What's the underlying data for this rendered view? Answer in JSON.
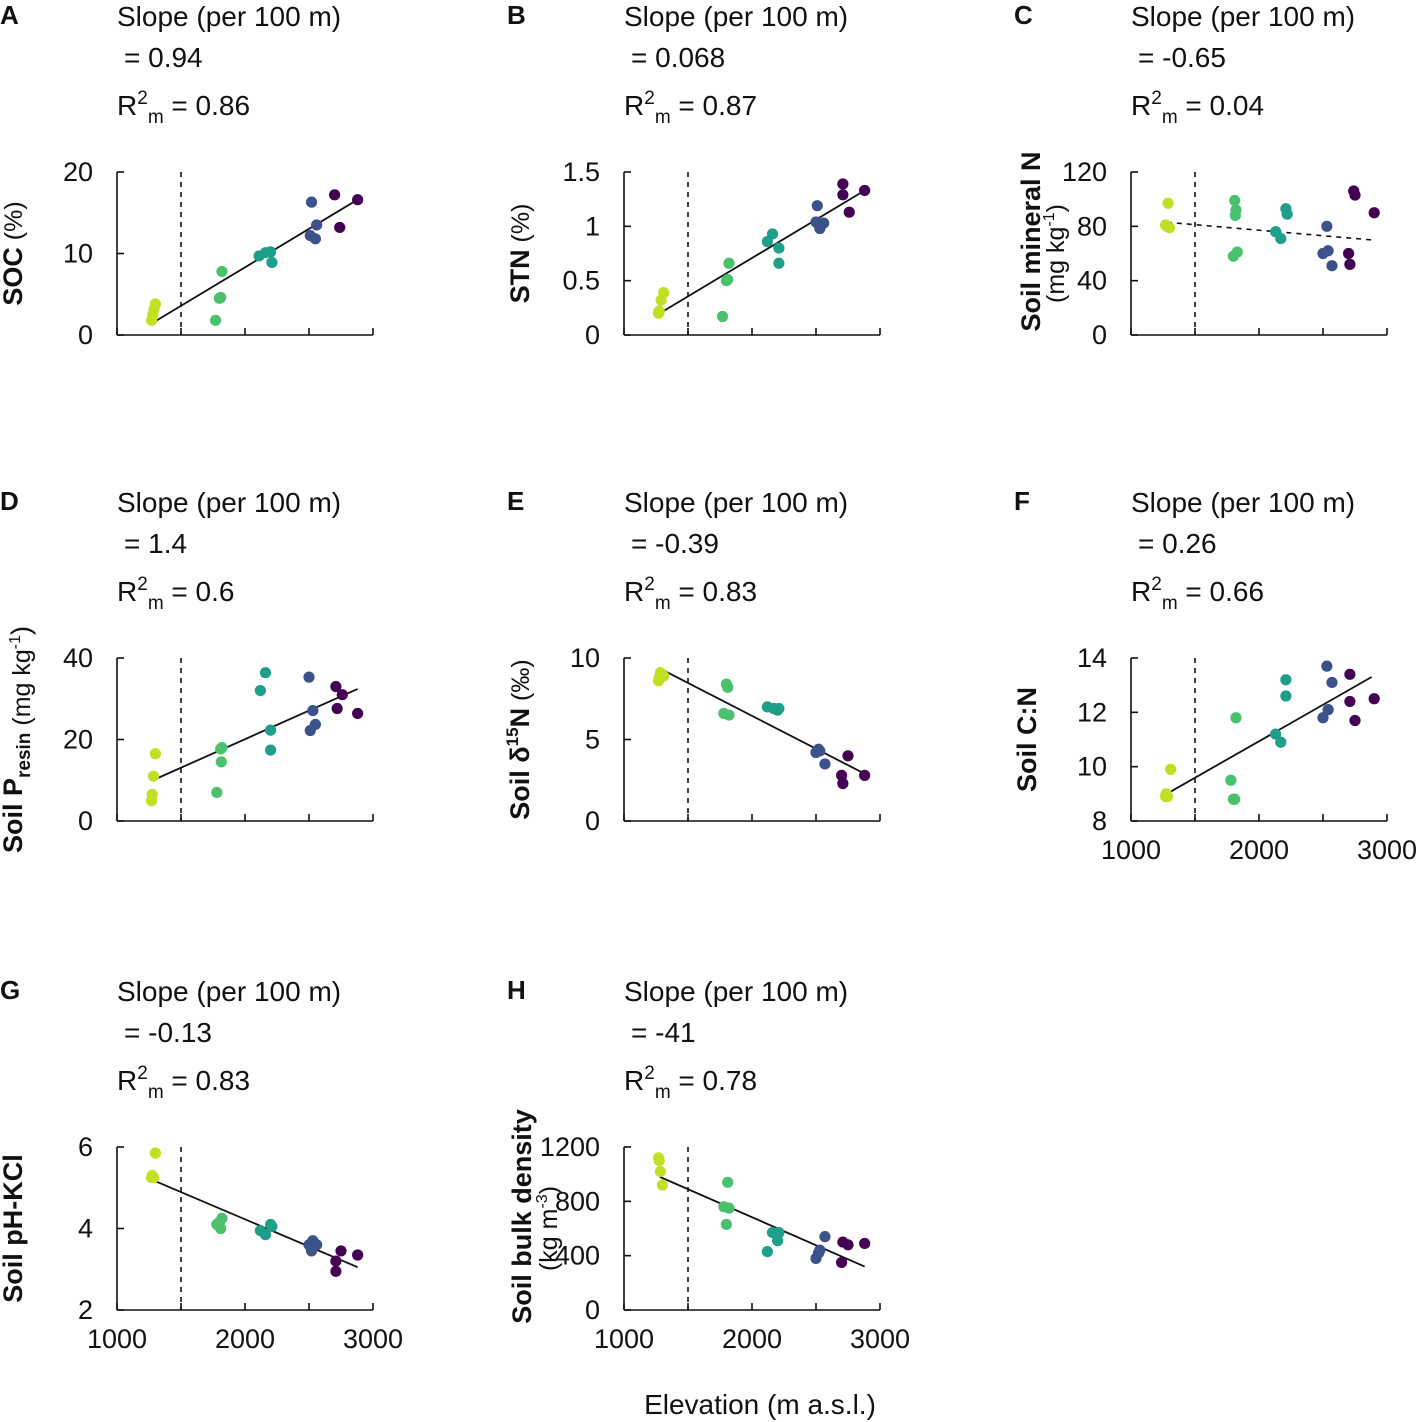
{
  "figure": {
    "x_axis_title": "Elevation (m a.s.l.)",
    "slope_title": "Slope (per 100 m)",
    "reference_elevation": 1500,
    "site_colors": [
      "#c2df23",
      "#4ac16d",
      "#1f9e89",
      "#3b528b",
      "#440154"
    ]
  },
  "chart_data": [
    {
      "panel": "A",
      "type": "scatter",
      "ylabel_main": "SOC",
      "ylabel_unit": "(%)",
      "slope_value": "= 0.94",
      "r2_label": "R",
      "r2_sup": "2",
      "r2_sub": "m",
      "r2_value": "= 0.86",
      "xlim": [
        1000,
        3000
      ],
      "ylim": [
        0,
        20
      ],
      "yticks": [
        0,
        10,
        20
      ],
      "xticks": [],
      "xtick_labels": [],
      "fit": {
        "x": [
          1280,
          2900
        ],
        "y": [
          1.5,
          16.8
        ],
        "dashed": false
      },
      "points": [
        {
          "x": 1270,
          "y": 1.8,
          "site": 0
        },
        {
          "x": 1280,
          "y": 2.5,
          "site": 0
        },
        {
          "x": 1290,
          "y": 3.2,
          "site": 0
        },
        {
          "x": 1300,
          "y": 3.8,
          "site": 0
        },
        {
          "x": 1770,
          "y": 1.8,
          "site": 1
        },
        {
          "x": 1800,
          "y": 4.5,
          "site": 1
        },
        {
          "x": 1810,
          "y": 4.6,
          "site": 1
        },
        {
          "x": 1820,
          "y": 7.8,
          "site": 1
        },
        {
          "x": 2110,
          "y": 9.7,
          "site": 2
        },
        {
          "x": 2160,
          "y": 10.1,
          "site": 2
        },
        {
          "x": 2200,
          "y": 10.2,
          "site": 2
        },
        {
          "x": 2210,
          "y": 8.9,
          "site": 2
        },
        {
          "x": 2510,
          "y": 12.2,
          "site": 3
        },
        {
          "x": 2520,
          "y": 16.3,
          "site": 3
        },
        {
          "x": 2550,
          "y": 11.8,
          "site": 3
        },
        {
          "x": 2560,
          "y": 13.5,
          "site": 3
        },
        {
          "x": 2700,
          "y": 17.2,
          "site": 4
        },
        {
          "x": 2740,
          "y": 13.2,
          "site": 4
        },
        {
          "x": 2880,
          "y": 16.6,
          "site": 4
        }
      ]
    },
    {
      "panel": "B",
      "type": "scatter",
      "ylabel_main": "STN",
      "ylabel_unit": "(%)",
      "slope_value": "= 0.068",
      "r2_label": "R",
      "r2_sup": "2",
      "r2_sub": "m",
      "r2_value": "= 0.87",
      "xlim": [
        1000,
        3000
      ],
      "ylim": [
        0,
        1.5
      ],
      "yticks": [
        0,
        0.5,
        1,
        1.5
      ],
      "xticks": [],
      "xtick_labels": [],
      "fit": {
        "x": [
          1280,
          2880
        ],
        "y": [
          0.2,
          1.33
        ],
        "dashed": false
      },
      "points": [
        {
          "x": 1270,
          "y": 0.2,
          "site": 0
        },
        {
          "x": 1275,
          "y": 0.22,
          "site": 0
        },
        {
          "x": 1290,
          "y": 0.32,
          "site": 0
        },
        {
          "x": 1310,
          "y": 0.39,
          "site": 0
        },
        {
          "x": 1770,
          "y": 0.17,
          "site": 1
        },
        {
          "x": 1800,
          "y": 0.5,
          "site": 1
        },
        {
          "x": 1810,
          "y": 0.51,
          "site": 1
        },
        {
          "x": 1820,
          "y": 0.66,
          "site": 1
        },
        {
          "x": 2120,
          "y": 0.86,
          "site": 2
        },
        {
          "x": 2160,
          "y": 0.93,
          "site": 2
        },
        {
          "x": 2210,
          "y": 0.8,
          "site": 2
        },
        {
          "x": 2210,
          "y": 0.66,
          "site": 2
        },
        {
          "x": 2500,
          "y": 1.04,
          "site": 3
        },
        {
          "x": 2510,
          "y": 1.19,
          "site": 3
        },
        {
          "x": 2530,
          "y": 0.98,
          "site": 3
        },
        {
          "x": 2560,
          "y": 1.03,
          "site": 3
        },
        {
          "x": 2710,
          "y": 1.39,
          "site": 4
        },
        {
          "x": 2710,
          "y": 1.29,
          "site": 4
        },
        {
          "x": 2760,
          "y": 1.13,
          "site": 4
        },
        {
          "x": 2880,
          "y": 1.33,
          "site": 4
        }
      ]
    },
    {
      "panel": "C",
      "type": "scatter",
      "ylabel_main": "Soil mineral N",
      "ylabel_unit": "(mg kg",
      "ylabel_unit_sup": "-1",
      "ylabel_unit_end": ")",
      "slope_value": "= -0.65",
      "r2_label": "R",
      "r2_sup": "2",
      "r2_sub": "m",
      "r2_value": "= 0.04",
      "xlim": [
        1000,
        3000
      ],
      "ylim": [
        0,
        120
      ],
      "yticks": [
        0,
        40,
        80,
        120
      ],
      "xticks": [],
      "xtick_labels": [],
      "fit": {
        "x": [
          1280,
          2880
        ],
        "y": [
          83,
          70
        ],
        "dashed": true
      },
      "points": [
        {
          "x": 1270,
          "y": 81,
          "site": 0
        },
        {
          "x": 1280,
          "y": 80,
          "site": 0
        },
        {
          "x": 1290,
          "y": 97,
          "site": 0
        },
        {
          "x": 1300,
          "y": 79,
          "site": 0
        },
        {
          "x": 1800,
          "y": 58,
          "site": 1
        },
        {
          "x": 1810,
          "y": 99,
          "site": 1
        },
        {
          "x": 1815,
          "y": 88,
          "site": 1
        },
        {
          "x": 1820,
          "y": 92,
          "site": 1
        },
        {
          "x": 1830,
          "y": 61,
          "site": 1
        },
        {
          "x": 2130,
          "y": 76,
          "site": 2
        },
        {
          "x": 2170,
          "y": 71,
          "site": 2
        },
        {
          "x": 2210,
          "y": 93,
          "site": 2
        },
        {
          "x": 2220,
          "y": 89,
          "site": 2
        },
        {
          "x": 2500,
          "y": 60,
          "site": 3
        },
        {
          "x": 2530,
          "y": 80,
          "site": 3
        },
        {
          "x": 2540,
          "y": 62,
          "site": 3
        },
        {
          "x": 2570,
          "y": 51,
          "site": 3
        },
        {
          "x": 2700,
          "y": 60,
          "site": 4
        },
        {
          "x": 2710,
          "y": 52,
          "site": 4
        },
        {
          "x": 2740,
          "y": 106,
          "site": 4
        },
        {
          "x": 2750,
          "y": 103,
          "site": 4
        },
        {
          "x": 2900,
          "y": 90,
          "site": 4
        }
      ]
    },
    {
      "panel": "D",
      "type": "scatter",
      "ylabel_main": "Soil P",
      "ylabel_sub": "resin",
      "ylabel_unit": "(mg kg",
      "ylabel_unit_sup": "-1",
      "ylabel_unit_end": ")",
      "slope_value": "= 1.4",
      "r2_label": "R",
      "r2_sup": "2",
      "r2_sub": "m",
      "r2_value": "= 0.6",
      "xlim": [
        1000,
        3000
      ],
      "ylim": [
        0,
        40
      ],
      "yticks": [
        0,
        20,
        40
      ],
      "xticks": [],
      "xtick_labels": [],
      "fit": {
        "x": [
          1280,
          2880
        ],
        "y": [
          10,
          32.4
        ],
        "dashed": false
      },
      "points": [
        {
          "x": 1270,
          "y": 5,
          "site": 0
        },
        {
          "x": 1275,
          "y": 6.5,
          "site": 0
        },
        {
          "x": 1285,
          "y": 11,
          "site": 0
        },
        {
          "x": 1300,
          "y": 16.5,
          "site": 0
        },
        {
          "x": 1780,
          "y": 7,
          "site": 1
        },
        {
          "x": 1810,
          "y": 17.7,
          "site": 1
        },
        {
          "x": 1815,
          "y": 14.5,
          "site": 1
        },
        {
          "x": 1820,
          "y": 18,
          "site": 1
        },
        {
          "x": 2120,
          "y": 32,
          "site": 2
        },
        {
          "x": 2160,
          "y": 36.4,
          "site": 2
        },
        {
          "x": 2200,
          "y": 22.3,
          "site": 2
        },
        {
          "x": 2200,
          "y": 17.4,
          "site": 2
        },
        {
          "x": 2500,
          "y": 35.3,
          "site": 3
        },
        {
          "x": 2510,
          "y": 22.2,
          "site": 3
        },
        {
          "x": 2530,
          "y": 27.1,
          "site": 3
        },
        {
          "x": 2550,
          "y": 23.7,
          "site": 3
        },
        {
          "x": 2710,
          "y": 33,
          "site": 4
        },
        {
          "x": 2720,
          "y": 27.6,
          "site": 4
        },
        {
          "x": 2760,
          "y": 31,
          "site": 4
        },
        {
          "x": 2880,
          "y": 26.4,
          "site": 4
        }
      ]
    },
    {
      "panel": "E",
      "type": "scatter",
      "ylabel_main": "Soil δ",
      "ylabel_sup": "15",
      "ylabel_after": "N",
      "ylabel_unit": "(‰)",
      "slope_value": "= -0.39",
      "r2_label": "R",
      "r2_sup": "2",
      "r2_sub": "m",
      "r2_value": "= 0.83",
      "xlim": [
        1000,
        3000
      ],
      "ylim": [
        0,
        10
      ],
      "yticks": [
        0,
        5,
        10
      ],
      "xticks": [],
      "xtick_labels": [],
      "fit": {
        "x": [
          1270,
          2880
        ],
        "y": [
          9.4,
          2.9
        ],
        "dashed": false
      },
      "points": [
        {
          "x": 1270,
          "y": 8.6,
          "site": 0
        },
        {
          "x": 1275,
          "y": 8.8,
          "site": 0
        },
        {
          "x": 1285,
          "y": 9.1,
          "site": 0
        },
        {
          "x": 1310,
          "y": 8.9,
          "site": 0
        },
        {
          "x": 1780,
          "y": 6.6,
          "site": 1
        },
        {
          "x": 1800,
          "y": 8.4,
          "site": 1
        },
        {
          "x": 1810,
          "y": 8.2,
          "site": 1
        },
        {
          "x": 1820,
          "y": 6.5,
          "site": 1
        },
        {
          "x": 2120,
          "y": 7.0,
          "site": 2
        },
        {
          "x": 2170,
          "y": 6.9,
          "site": 2
        },
        {
          "x": 2200,
          "y": 6.8,
          "site": 2
        },
        {
          "x": 2210,
          "y": 6.9,
          "site": 2
        },
        {
          "x": 2500,
          "y": 4.2,
          "site": 3
        },
        {
          "x": 2520,
          "y": 4.4,
          "site": 3
        },
        {
          "x": 2530,
          "y": 4.3,
          "site": 3
        },
        {
          "x": 2570,
          "y": 3.5,
          "site": 3
        },
        {
          "x": 2700,
          "y": 2.8,
          "site": 4
        },
        {
          "x": 2710,
          "y": 2.3,
          "site": 4
        },
        {
          "x": 2750,
          "y": 4.0,
          "site": 4
        },
        {
          "x": 2880,
          "y": 2.8,
          "site": 4
        }
      ]
    },
    {
      "panel": "F",
      "type": "scatter",
      "ylabel_main": "Soil C:N",
      "ylabel_unit": "",
      "slope_value": "= 0.26",
      "r2_label": "R",
      "r2_sup": "2",
      "r2_sub": "m",
      "r2_value": "= 0.66",
      "xlim": [
        1000,
        3000
      ],
      "ylim": [
        8,
        14
      ],
      "yticks": [
        8,
        10,
        12,
        14
      ],
      "xticks": [
        1000,
        2000,
        3000
      ],
      "xtick_labels": [
        "1000",
        "2000",
        "3000"
      ],
      "fit": {
        "x": [
          1280,
          2880
        ],
        "y": [
          9.0,
          13.3
        ],
        "dashed": false
      },
      "points": [
        {
          "x": 1270,
          "y": 8.9,
          "site": 0
        },
        {
          "x": 1275,
          "y": 9.0,
          "site": 0
        },
        {
          "x": 1285,
          "y": 8.9,
          "site": 0
        },
        {
          "x": 1310,
          "y": 9.9,
          "site": 0
        },
        {
          "x": 1780,
          "y": 9.5,
          "site": 1
        },
        {
          "x": 1800,
          "y": 8.8,
          "site": 1
        },
        {
          "x": 1810,
          "y": 8.8,
          "site": 1
        },
        {
          "x": 1820,
          "y": 11.8,
          "site": 1
        },
        {
          "x": 2130,
          "y": 11.2,
          "site": 2
        },
        {
          "x": 2170,
          "y": 10.9,
          "site": 2
        },
        {
          "x": 2210,
          "y": 13.2,
          "site": 2
        },
        {
          "x": 2210,
          "y": 12.6,
          "site": 2
        },
        {
          "x": 2500,
          "y": 11.8,
          "site": 3
        },
        {
          "x": 2530,
          "y": 13.7,
          "site": 3
        },
        {
          "x": 2540,
          "y": 12.1,
          "site": 3
        },
        {
          "x": 2570,
          "y": 13.1,
          "site": 3
        },
        {
          "x": 2710,
          "y": 13.4,
          "site": 4
        },
        {
          "x": 2710,
          "y": 12.4,
          "site": 4
        },
        {
          "x": 2750,
          "y": 11.7,
          "site": 4
        },
        {
          "x": 2900,
          "y": 12.5,
          "site": 4
        }
      ]
    },
    {
      "panel": "G",
      "type": "scatter",
      "ylabel_main": "Soil pH-KCl",
      "ylabel_unit": "",
      "slope_value": "= -0.13",
      "r2_label": "R",
      "r2_sup": "2",
      "r2_sub": "m",
      "r2_value": "= 0.83",
      "xlim": [
        1000,
        3000
      ],
      "ylim": [
        2,
        6
      ],
      "yticks": [
        2,
        4,
        6
      ],
      "xticks": [
        1000,
        2000,
        3000
      ],
      "xtick_labels": [
        "1000",
        "2000",
        "3000"
      ],
      "fit": {
        "x": [
          1270,
          2880
        ],
        "y": [
          5.2,
          3.05
        ],
        "dashed": false
      },
      "points": [
        {
          "x": 1270,
          "y": 5.25,
          "site": 0
        },
        {
          "x": 1275,
          "y": 5.3,
          "site": 0
        },
        {
          "x": 1285,
          "y": 5.25,
          "site": 0
        },
        {
          "x": 1300,
          "y": 5.85,
          "site": 0
        },
        {
          "x": 1780,
          "y": 4.1,
          "site": 1
        },
        {
          "x": 1800,
          "y": 4.15,
          "site": 1
        },
        {
          "x": 1810,
          "y": 4.0,
          "site": 1
        },
        {
          "x": 1820,
          "y": 4.25,
          "site": 1
        },
        {
          "x": 2120,
          "y": 3.95,
          "site": 2
        },
        {
          "x": 2160,
          "y": 3.85,
          "site": 2
        },
        {
          "x": 2200,
          "y": 4.1,
          "site": 2
        },
        {
          "x": 2210,
          "y": 4.05,
          "site": 2
        },
        {
          "x": 2500,
          "y": 3.6,
          "site": 3
        },
        {
          "x": 2520,
          "y": 3.45,
          "site": 3
        },
        {
          "x": 2530,
          "y": 3.7,
          "site": 3
        },
        {
          "x": 2560,
          "y": 3.6,
          "site": 3
        },
        {
          "x": 2710,
          "y": 2.95,
          "site": 4
        },
        {
          "x": 2710,
          "y": 3.2,
          "site": 4
        },
        {
          "x": 2750,
          "y": 3.45,
          "site": 4
        },
        {
          "x": 2880,
          "y": 3.35,
          "site": 4
        }
      ]
    },
    {
      "panel": "H",
      "type": "scatter",
      "ylabel_main": "Soil bulk density",
      "ylabel_unit": "(kg m",
      "ylabel_unit_sup": "-3",
      "ylabel_unit_end": ")",
      "slope_value": "= -41",
      "r2_label": "R",
      "r2_sup": "2",
      "r2_sub": "m",
      "r2_value": "= 0.78",
      "xlim": [
        1000,
        3000
      ],
      "ylim": [
        0,
        1200
      ],
      "yticks": [
        0,
        400,
        800,
        1200
      ],
      "xticks": [
        1000,
        2000,
        3000
      ],
      "xtick_labels": [
        "1000",
        "2000",
        "3000"
      ],
      "fit": {
        "x": [
          1280,
          2880
        ],
        "y": [
          980,
          320
        ],
        "dashed": false
      },
      "points": [
        {
          "x": 1270,
          "y": 1120,
          "site": 0
        },
        {
          "x": 1275,
          "y": 1100,
          "site": 0
        },
        {
          "x": 1285,
          "y": 1020,
          "site": 0
        },
        {
          "x": 1300,
          "y": 920,
          "site": 0
        },
        {
          "x": 1780,
          "y": 760,
          "site": 1
        },
        {
          "x": 1800,
          "y": 630,
          "site": 1
        },
        {
          "x": 1810,
          "y": 940,
          "site": 1
        },
        {
          "x": 1820,
          "y": 750,
          "site": 1
        },
        {
          "x": 2120,
          "y": 430,
          "site": 2
        },
        {
          "x": 2160,
          "y": 570,
          "site": 2
        },
        {
          "x": 2200,
          "y": 510,
          "site": 2
        },
        {
          "x": 2210,
          "y": 570,
          "site": 2
        },
        {
          "x": 2500,
          "y": 380,
          "site": 3
        },
        {
          "x": 2520,
          "y": 420,
          "site": 3
        },
        {
          "x": 2530,
          "y": 440,
          "site": 3
        },
        {
          "x": 2570,
          "y": 540,
          "site": 3
        },
        {
          "x": 2700,
          "y": 350,
          "site": 4
        },
        {
          "x": 2710,
          "y": 500,
          "site": 4
        },
        {
          "x": 2750,
          "y": 480,
          "site": 4
        },
        {
          "x": 2880,
          "y": 490,
          "site": 4
        }
      ]
    }
  ]
}
